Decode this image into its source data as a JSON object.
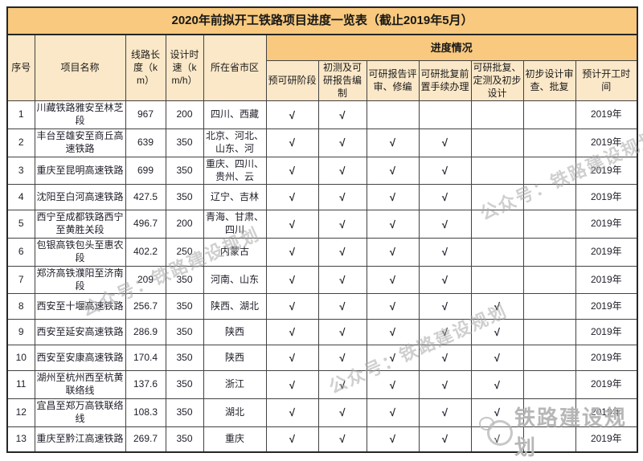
{
  "title": "2020年前拟开工铁路项目进度一览表（截止2019年5月）",
  "table": {
    "headers": {
      "seq": "序号",
      "project": "项目名称",
      "length": "线路长度（km）",
      "speed": "设计时速（km/h）",
      "region": "所在省市区",
      "progress_group": "进度情况",
      "progress_cols": [
        "预可研阶段",
        "初测及可研报告编制",
        "可研报告评审、修编",
        "可研批复前置手续办理",
        "可研批复、定测及初步设计",
        "初步设计审查、批复"
      ],
      "start_time": "预计开工时间"
    },
    "check_mark": "√",
    "rows": [
      {
        "no": "1",
        "name": "川藏铁路雅安至林芝段",
        "length": "967",
        "speed": "200",
        "region": "四川、西藏",
        "progress": [
          1,
          1,
          0,
          0,
          0,
          0
        ],
        "start": "2019年"
      },
      {
        "no": "2",
        "name": "丰台至雄安至商丘高速铁路",
        "length": "639",
        "speed": "350",
        "region": "北京、河北、山东、河",
        "progress": [
          1,
          1,
          1,
          1,
          0,
          0
        ],
        "start": "2019年"
      },
      {
        "no": "3",
        "name": "重庆至昆明高速铁路",
        "length": "699",
        "speed": "350",
        "region": "重庆、四川、贵州、云",
        "progress": [
          1,
          1,
          1,
          1,
          0,
          0
        ],
        "start": "2019年"
      },
      {
        "no": "4",
        "name": "沈阳至白河高速铁路",
        "length": "427.5",
        "speed": "350",
        "region": "辽宁、吉林",
        "progress": [
          1,
          1,
          1,
          1,
          0,
          0
        ],
        "start": "2019年"
      },
      {
        "no": "5",
        "name": "西宁至成都铁路西宁至黄胜关段",
        "length": "496.7",
        "speed": "200",
        "region": "青海、甘肃、四川",
        "progress": [
          1,
          1,
          1,
          1,
          0,
          0
        ],
        "start": "2019年"
      },
      {
        "no": "6",
        "name": "包银高铁包头至惠农段",
        "length": "402.2",
        "speed": "250",
        "region": "内蒙古",
        "progress": [
          1,
          1,
          1,
          1,
          0,
          0
        ],
        "start": "2019年"
      },
      {
        "no": "7",
        "name": "郑济高铁濮阳至济南段",
        "length": "209",
        "speed": "350",
        "region": "河南、山东",
        "progress": [
          1,
          1,
          1,
          1,
          0,
          0
        ],
        "start": "2019年"
      },
      {
        "no": "8",
        "name": "西安至十堰高速铁路",
        "length": "256.7",
        "speed": "350",
        "region": "陕西、湖北",
        "progress": [
          1,
          1,
          1,
          1,
          1,
          0
        ],
        "start": "2019年"
      },
      {
        "no": "9",
        "name": "西安至延安高速铁路",
        "length": "286.9",
        "speed": "350",
        "region": "陕西",
        "progress": [
          1,
          1,
          1,
          1,
          1,
          0
        ],
        "start": "2019年"
      },
      {
        "no": "10",
        "name": "西安至安康高速铁路",
        "length": "170.4",
        "speed": "350",
        "region": "陕西",
        "progress": [
          1,
          1,
          1,
          1,
          1,
          0
        ],
        "start": "2019年"
      },
      {
        "no": "11",
        "name": "湖州至杭州西至杭黄联络线",
        "length": "137.6",
        "speed": "350",
        "region": "浙江",
        "progress": [
          1,
          1,
          1,
          1,
          1,
          0
        ],
        "start": "2019年"
      },
      {
        "no": "12",
        "name": "宜昌至郑万高铁联络线",
        "length": "108.3",
        "speed": "350",
        "region": "湖北",
        "progress": [
          1,
          1,
          1,
          1,
          1,
          0
        ],
        "start": "2019年"
      },
      {
        "no": "13",
        "name": "重庆至黔江高速铁路",
        "length": "269.7",
        "speed": "350",
        "region": "重庆",
        "progress": [
          1,
          1,
          1,
          1,
          1,
          0
        ],
        "start": "2019年"
      }
    ]
  },
  "watermarks": {
    "diagonal_text": "公众号：铁路建设规划",
    "bottom_text": "铁路建设规划"
  },
  "colors": {
    "title_band": "#f8c97e",
    "header_cell": "#fbe8c8",
    "border": "#424242",
    "watermark": "#a8a8a8"
  }
}
